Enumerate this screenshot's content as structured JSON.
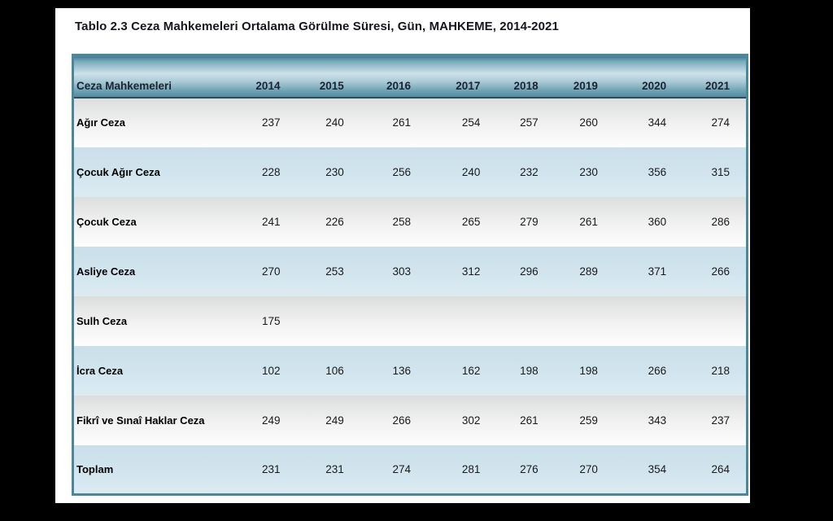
{
  "doc": {
    "title": "Tablo 2.3 Ceza Mahkemeleri Ortalama Görülme Süresi, Gün, MAHKEME, 2014-2021"
  },
  "table": {
    "header_label": "Ceza Mahkemeleri",
    "columns": [
      "2014",
      "2015",
      "2016",
      "2017",
      "2018",
      "2019",
      "2020",
      "2021"
    ],
    "rows": [
      {
        "label": "Ağır Ceza",
        "values": [
          "237",
          "240",
          "261",
          "254",
          "257",
          "260",
          "344",
          "274"
        ]
      },
      {
        "label": "Çocuk Ağır Ceza",
        "values": [
          "228",
          "230",
          "256",
          "240",
          "232",
          "230",
          "356",
          "315"
        ]
      },
      {
        "label": "Çocuk  Ceza",
        "values": [
          "241",
          "226",
          "258",
          "265",
          "279",
          "261",
          "360",
          "286"
        ]
      },
      {
        "label": "Asliye Ceza",
        "values": [
          "270",
          "253",
          "303",
          "312",
          "296",
          "289",
          "371",
          "266"
        ]
      },
      {
        "label": "Sulh Ceza",
        "values": [
          "175",
          "",
          "",
          "",
          "",
          "",
          "",
          ""
        ]
      },
      {
        "label": "İcra Ceza",
        "values": [
          "102",
          "106",
          "136",
          "162",
          "198",
          "198",
          "266",
          "218"
        ]
      },
      {
        "label": "Fikrî ve Sınaî Haklar Ceza",
        "values": [
          "249",
          "249",
          "266",
          "302",
          "261",
          "259",
          "343",
          "237"
        ]
      },
      {
        "label": "Toplam",
        "values": [
          "231",
          "231",
          "274",
          "281",
          "276",
          "270",
          "354",
          "264"
        ]
      }
    ]
  },
  "colors": {
    "table_border_teal": "#4e8699",
    "header_gradient_dark": "#3f7d94",
    "header_gradient_light": "#cde2ea",
    "header_bottom_line": "#2a4d60",
    "row_gray_top": "#dcdddd",
    "row_gray_bottom": "#fdfdfd",
    "row_blue_top": "#c9dfe9",
    "row_blue_bottom": "#dcebf1",
    "page_background": "#ffffff",
    "frame_background": "#000000",
    "title_text": "#15151f"
  }
}
